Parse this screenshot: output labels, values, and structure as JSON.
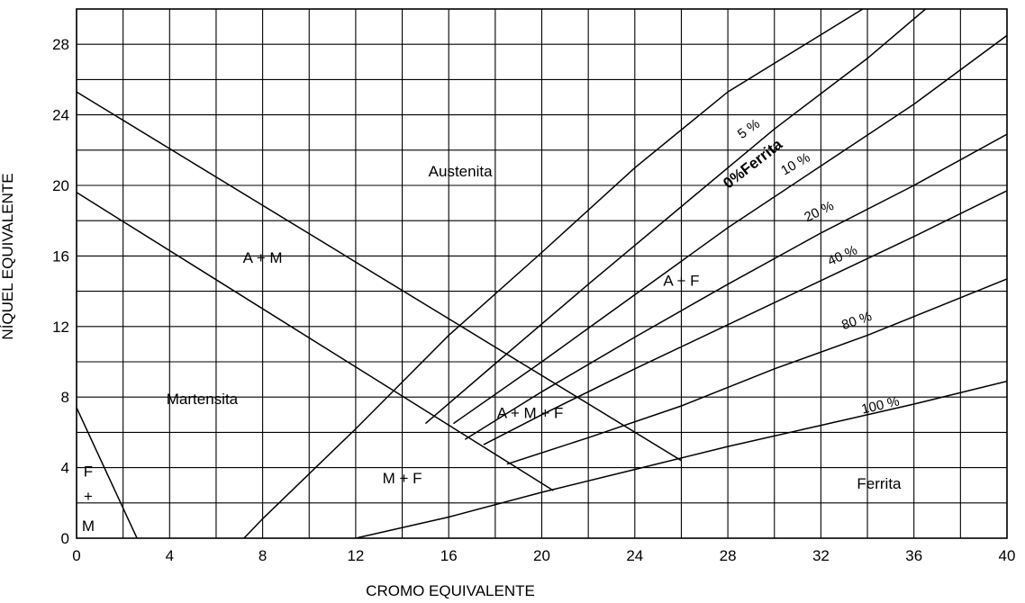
{
  "chart_data": {
    "type": "line",
    "xlabel": "CROMO EQUIVALENTE",
    "ylabel": "NÍQUEL EQUIVALENTE",
    "xlim": [
      0,
      40
    ],
    "ylim": [
      0,
      30
    ],
    "x_ticks": [
      0,
      4,
      8,
      12,
      16,
      20,
      24,
      28,
      32,
      36,
      40
    ],
    "y_ticks": [
      0,
      4,
      8,
      12,
      16,
      20,
      24,
      28
    ],
    "grid_x_step": 2,
    "grid_y_step": 2,
    "grid": true,
    "series": [
      {
        "name": "0%Ferrita",
        "x": [
          7.2,
          8,
          12,
          16,
          20,
          24,
          28,
          33.8
        ],
        "y": [
          0,
          1.1,
          6.2,
          11.5,
          16.2,
          21.0,
          25.3,
          30
        ]
      },
      {
        "name": "5 %",
        "x": [
          15.0,
          18,
          22,
          26,
          30,
          34,
          36.5
        ],
        "y": [
          6.5,
          9.9,
          14.4,
          18.8,
          23.2,
          27.2,
          30
        ]
      },
      {
        "name": "10 %",
        "x": [
          16.2,
          20,
          24,
          28,
          32,
          36,
          40
        ],
        "y": [
          6.5,
          10.0,
          13.8,
          17.6,
          21.1,
          24.6,
          28.5
        ]
      },
      {
        "name": "20 %",
        "x": [
          16.7,
          20,
          24,
          28,
          32,
          36,
          40
        ],
        "y": [
          5.6,
          8.3,
          11.4,
          14.4,
          17.3,
          20.0,
          22.9
        ]
      },
      {
        "name": "40 %",
        "x": [
          17.5,
          20,
          24,
          28,
          32,
          36,
          40
        ],
        "y": [
          5.3,
          7.0,
          9.6,
          12.1,
          14.6,
          17.1,
          19.7
        ]
      },
      {
        "name": "80 %",
        "x": [
          18.5,
          22,
          26,
          30,
          34,
          40
        ],
        "y": [
          4.2,
          5.7,
          7.5,
          9.6,
          11.5,
          14.7
        ]
      },
      {
        "name": "100 %",
        "x": [
          12.0,
          16,
          20,
          24,
          28,
          32,
          36,
          40
        ],
        "y": [
          0,
          1.2,
          2.6,
          3.9,
          5.2,
          6.4,
          7.6,
          8.9
        ]
      },
      {
        "name": "",
        "x": [
          0,
          20.5
        ],
        "y": [
          19.6,
          2.7
        ]
      },
      {
        "name": "",
        "x": [
          0,
          26.0
        ],
        "y": [
          25.3,
          4.4
        ]
      },
      {
        "name": "",
        "x": [
          0,
          2.6
        ],
        "y": [
          7.4,
          0
        ]
      }
    ],
    "annotations": [
      {
        "text": "Austenita",
        "x": 16.5,
        "y": 20.5
      },
      {
        "text": "A + M",
        "x": 8.0,
        "y": 15.6
      },
      {
        "text": "Martensita",
        "x": 5.4,
        "y": 7.6
      },
      {
        "text": "A + F",
        "x": 26.0,
        "y": 14.3
      },
      {
        "text": "A + M + F",
        "x": 19.5,
        "y": 6.8
      },
      {
        "text": "M + F",
        "x": 14.0,
        "y": 3.1
      },
      {
        "text": "Ferrita",
        "x": 34.5,
        "y": 2.8
      },
      {
        "text": "F",
        "x": 0.5,
        "y": 3.5
      },
      {
        "text": "+",
        "x": 0.5,
        "y": 2.1
      },
      {
        "text": "M",
        "x": 0.5,
        "y": 0.4
      }
    ],
    "curve_labels": [
      "0%Ferrita",
      "5 %",
      "10 %",
      "20 %",
      "40 %",
      "80 %",
      "100 %"
    ]
  }
}
